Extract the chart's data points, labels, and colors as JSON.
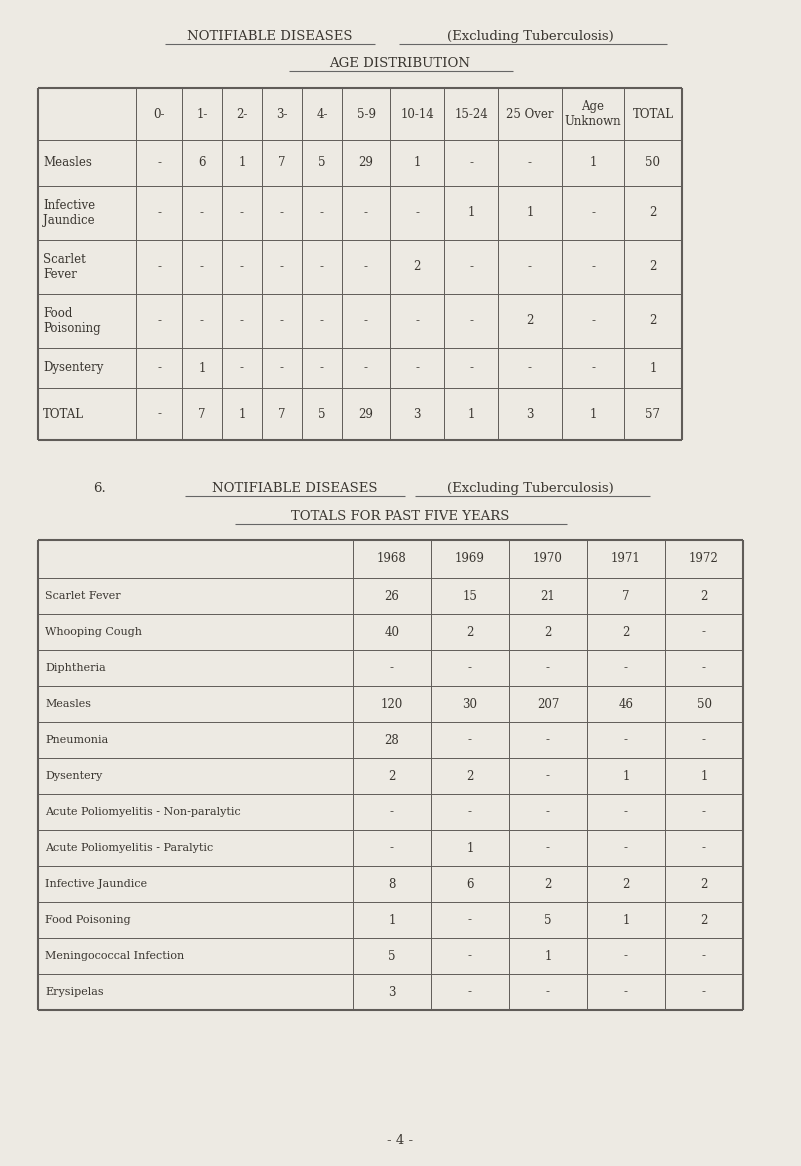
{
  "bg_color": "#edeae3",
  "table1_col_headers": [
    "0-",
    "1-",
    "2-",
    "3-",
    "4-",
    "5-9",
    "10-14",
    "15-24",
    "25 Over",
    "Age\nUnknown",
    "TOTAL"
  ],
  "table1_rows": [
    [
      "Measles",
      "-",
      "6",
      "1",
      "7",
      "5",
      "29",
      "1",
      "-",
      "-",
      "1",
      "50"
    ],
    [
      "Infective\nJaundice",
      "-",
      "-",
      "-",
      "-",
      "-",
      "-",
      "-",
      "1",
      "1",
      "-",
      "2"
    ],
    [
      "Scarlet\nFever",
      "-",
      "-",
      "-",
      "-",
      "-",
      "-",
      "2",
      "-",
      "-",
      "-",
      "2"
    ],
    [
      "Food\nPoisoning",
      "-",
      "-",
      "-",
      "-",
      "-",
      "-",
      "-",
      "-",
      "2",
      "-",
      "2"
    ],
    [
      "Dysentery",
      "-",
      "1",
      "-",
      "-",
      "-",
      "-",
      "-",
      "-",
      "-",
      "-",
      "1"
    ],
    [
      "TOTAL",
      "-",
      "7",
      "1",
      "7",
      "5",
      "29",
      "3",
      "1",
      "3",
      "1",
      "57"
    ]
  ],
  "table2_col_headers": [
    "1968",
    "1969",
    "1970",
    "1971",
    "1972"
  ],
  "table2_rows": [
    [
      "Scarlet Fever",
      "26",
      "15",
      "21",
      "7",
      "2"
    ],
    [
      "Whooping Cough",
      "40",
      "2",
      "2",
      "2",
      "-"
    ],
    [
      "Diphtheria",
      "-",
      "-",
      "-",
      "-",
      "-"
    ],
    [
      "Measles",
      "120",
      "30",
      "207",
      "46",
      "50"
    ],
    [
      "Pneumonia",
      "28",
      "-",
      "-",
      "-",
      "-"
    ],
    [
      "Dysentery",
      "2",
      "2",
      "-",
      "1",
      "1"
    ],
    [
      "Acute Poliomyelitis - Non-paralytic",
      "-",
      "-",
      "-",
      "-",
      "-"
    ],
    [
      "Acute Poliomyelitis - Paralytic",
      "-",
      "1",
      "-",
      "-",
      "-"
    ],
    [
      "Infective Jaundice",
      "8",
      "6",
      "2",
      "2",
      "2"
    ],
    [
      "Food Poisoning",
      "1",
      "-",
      "5",
      "1",
      "2"
    ],
    [
      "Meningococcal Infection",
      "5",
      "-",
      "1",
      "-",
      "-"
    ],
    [
      "Erysipelas",
      "3",
      "-",
      "-",
      "-",
      "-"
    ]
  ],
  "page_num": "- 4 -",
  "font_size_title": 9.5,
  "font_size_cell": 8.5,
  "text_color": "#3a3630"
}
